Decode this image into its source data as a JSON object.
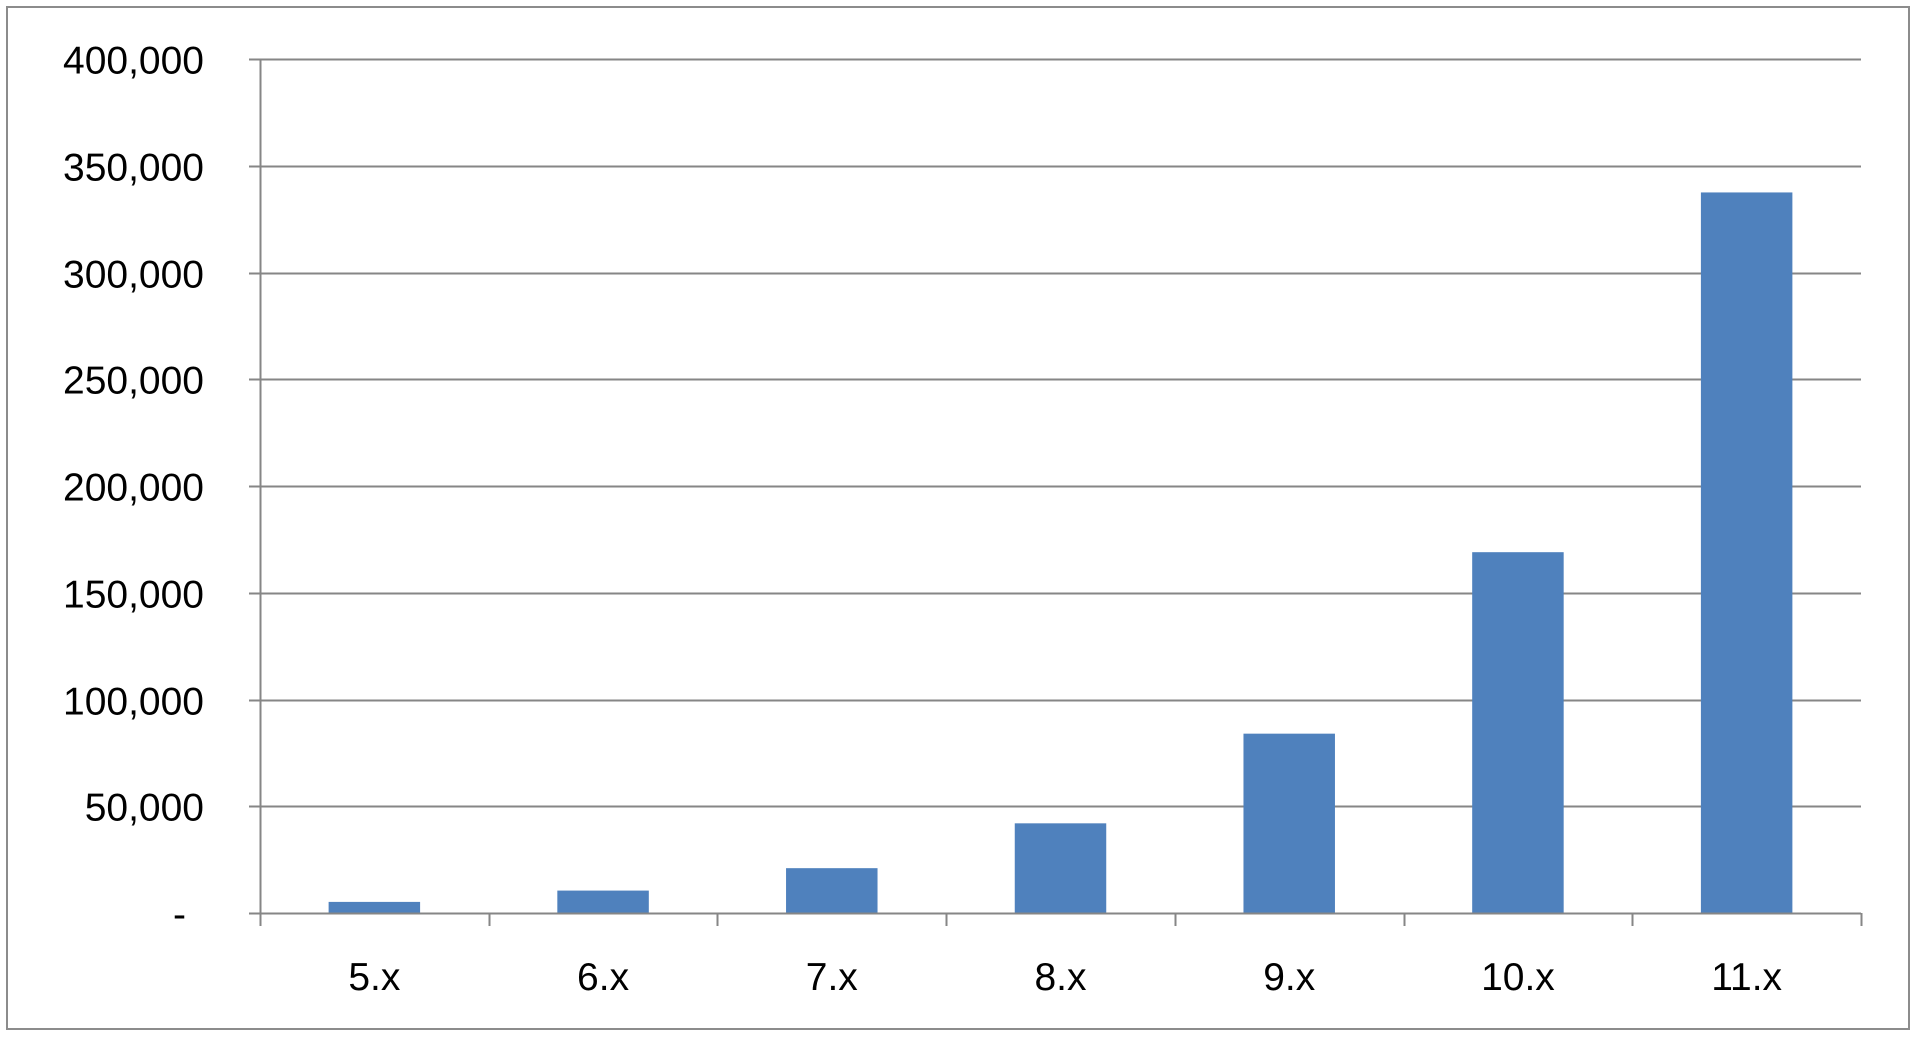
{
  "chart_data": {
    "type": "bar",
    "categories": [
      "5.x",
      "6.x",
      "7.x",
      "8.x",
      "9.x",
      "10.x",
      "11.x"
    ],
    "values": [
      5200,
      10500,
      21000,
      42000,
      84000,
      169000,
      337500
    ],
    "ylim": [
      0,
      400000
    ],
    "yticks": [
      0,
      50000,
      100000,
      150000,
      200000,
      250000,
      300000,
      350000,
      400000
    ],
    "ytick_labels": [
      "-",
      "50,000",
      "100,000",
      "150,000",
      "200,000",
      "250,000",
      "300,000",
      "350,000",
      "400,000"
    ],
    "grid": true,
    "legend": "none",
    "bar_color": "#4f81bd",
    "grid_color": "#868686"
  }
}
